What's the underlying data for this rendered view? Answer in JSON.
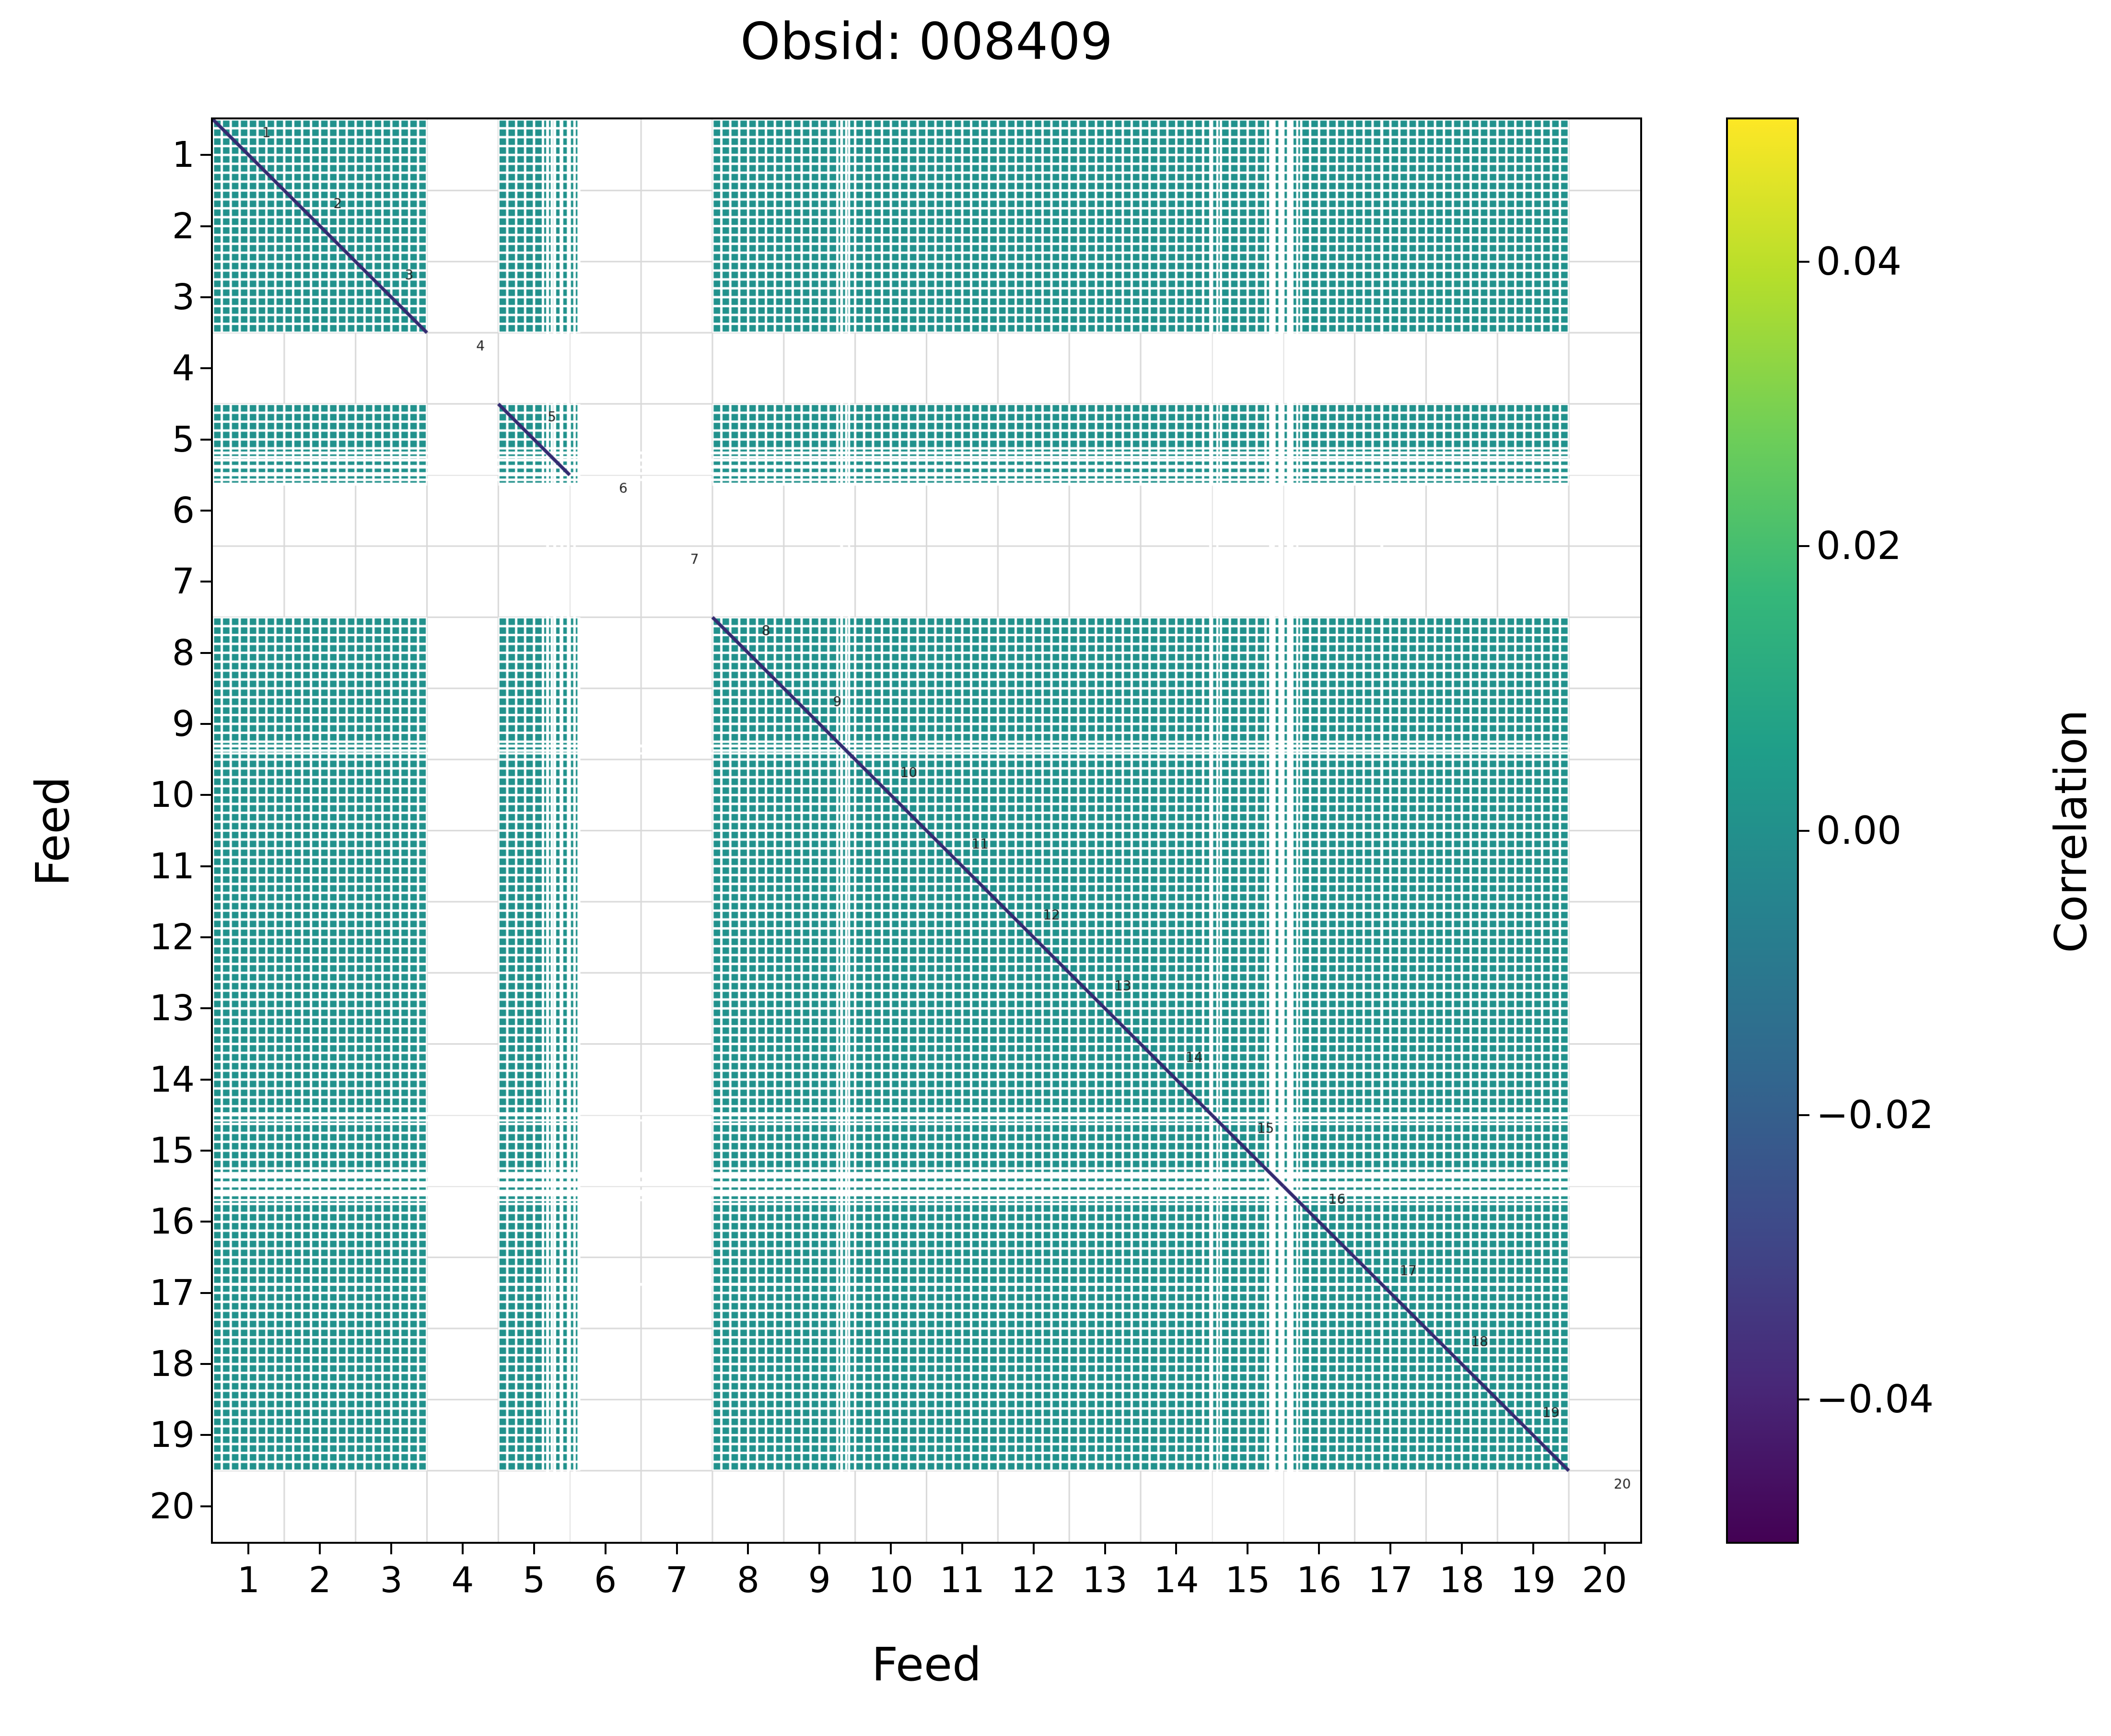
{
  "chart_data": {
    "type": "heatmap",
    "title": "Obsid: 008409",
    "xlabel": "Feed",
    "ylabel": "Feed",
    "x_ticks": [
      1,
      2,
      3,
      4,
      5,
      6,
      7,
      8,
      9,
      10,
      11,
      12,
      13,
      14,
      15,
      16,
      17,
      18,
      19,
      20
    ],
    "y_ticks": [
      1,
      2,
      3,
      4,
      5,
      6,
      7,
      8,
      9,
      10,
      11,
      12,
      13,
      14,
      15,
      16,
      17,
      18,
      19,
      20
    ],
    "axis_range": [
      0.5,
      20.5
    ],
    "feeds": [
      1,
      2,
      3,
      4,
      5,
      6,
      7,
      8,
      9,
      10,
      11,
      12,
      13,
      14,
      15,
      16,
      17,
      18,
      19,
      20
    ],
    "diagonal_labels": [
      "1",
      "2",
      "3",
      "4",
      "5",
      "6",
      "7",
      "8",
      "9",
      "10",
      "11",
      "12",
      "13",
      "14",
      "15",
      "16",
      "17",
      "18",
      "19",
      "20"
    ],
    "inactive_feeds": [
      4,
      6,
      7,
      20
    ],
    "active_intervals": [
      [
        0.5,
        3.5
      ],
      [
        4.5,
        5.65
      ],
      [
        7.5,
        19.5
      ]
    ],
    "diagonal_feeds": [
      1,
      2,
      3,
      5,
      8,
      9,
      10,
      11,
      12,
      13,
      14,
      15,
      16,
      17,
      18,
      19
    ],
    "base_correlation": 0.0,
    "subdivisions_per_feed": 8,
    "masked_bands": [
      [
        5.17,
        5.21
      ],
      [
        5.27,
        5.31
      ],
      [
        5.37,
        5.41
      ],
      [
        5.46,
        5.5
      ],
      [
        5.55,
        5.585
      ],
      [
        9.29,
        9.33
      ],
      [
        9.4,
        9.43
      ],
      [
        14.46,
        14.5
      ],
      [
        14.56,
        14.59
      ],
      [
        15.3,
        15.38
      ],
      [
        15.43,
        15.5
      ],
      [
        15.55,
        15.64
      ],
      [
        15.68,
        15.71
      ],
      [
        16.86,
        16.9
      ]
    ],
    "grid": true,
    "colors": {
      "cell": "#21918c",
      "diagonal": "#332a70",
      "masked": "#ffffff",
      "grid": "#d8d8d8",
      "label": "#1f1f1f",
      "axes": "#000000"
    },
    "colorbar": {
      "label": "Correlation",
      "ticks": [
        "0.04",
        "0.02",
        "0.00",
        "−0.02",
        "−0.04"
      ],
      "tick_values": [
        0.04,
        0.02,
        0.0,
        -0.02,
        -0.04
      ],
      "vmin": -0.05,
      "vmax": 0.05,
      "colormap": "viridis",
      "gradient_stops": [
        "#440154",
        "#482878",
        "#3e4a89",
        "#31688e",
        "#26828e",
        "#1f9e89",
        "#35b779",
        "#6ece58",
        "#b5de2b",
        "#fde725"
      ],
      "position": "right"
    }
  }
}
